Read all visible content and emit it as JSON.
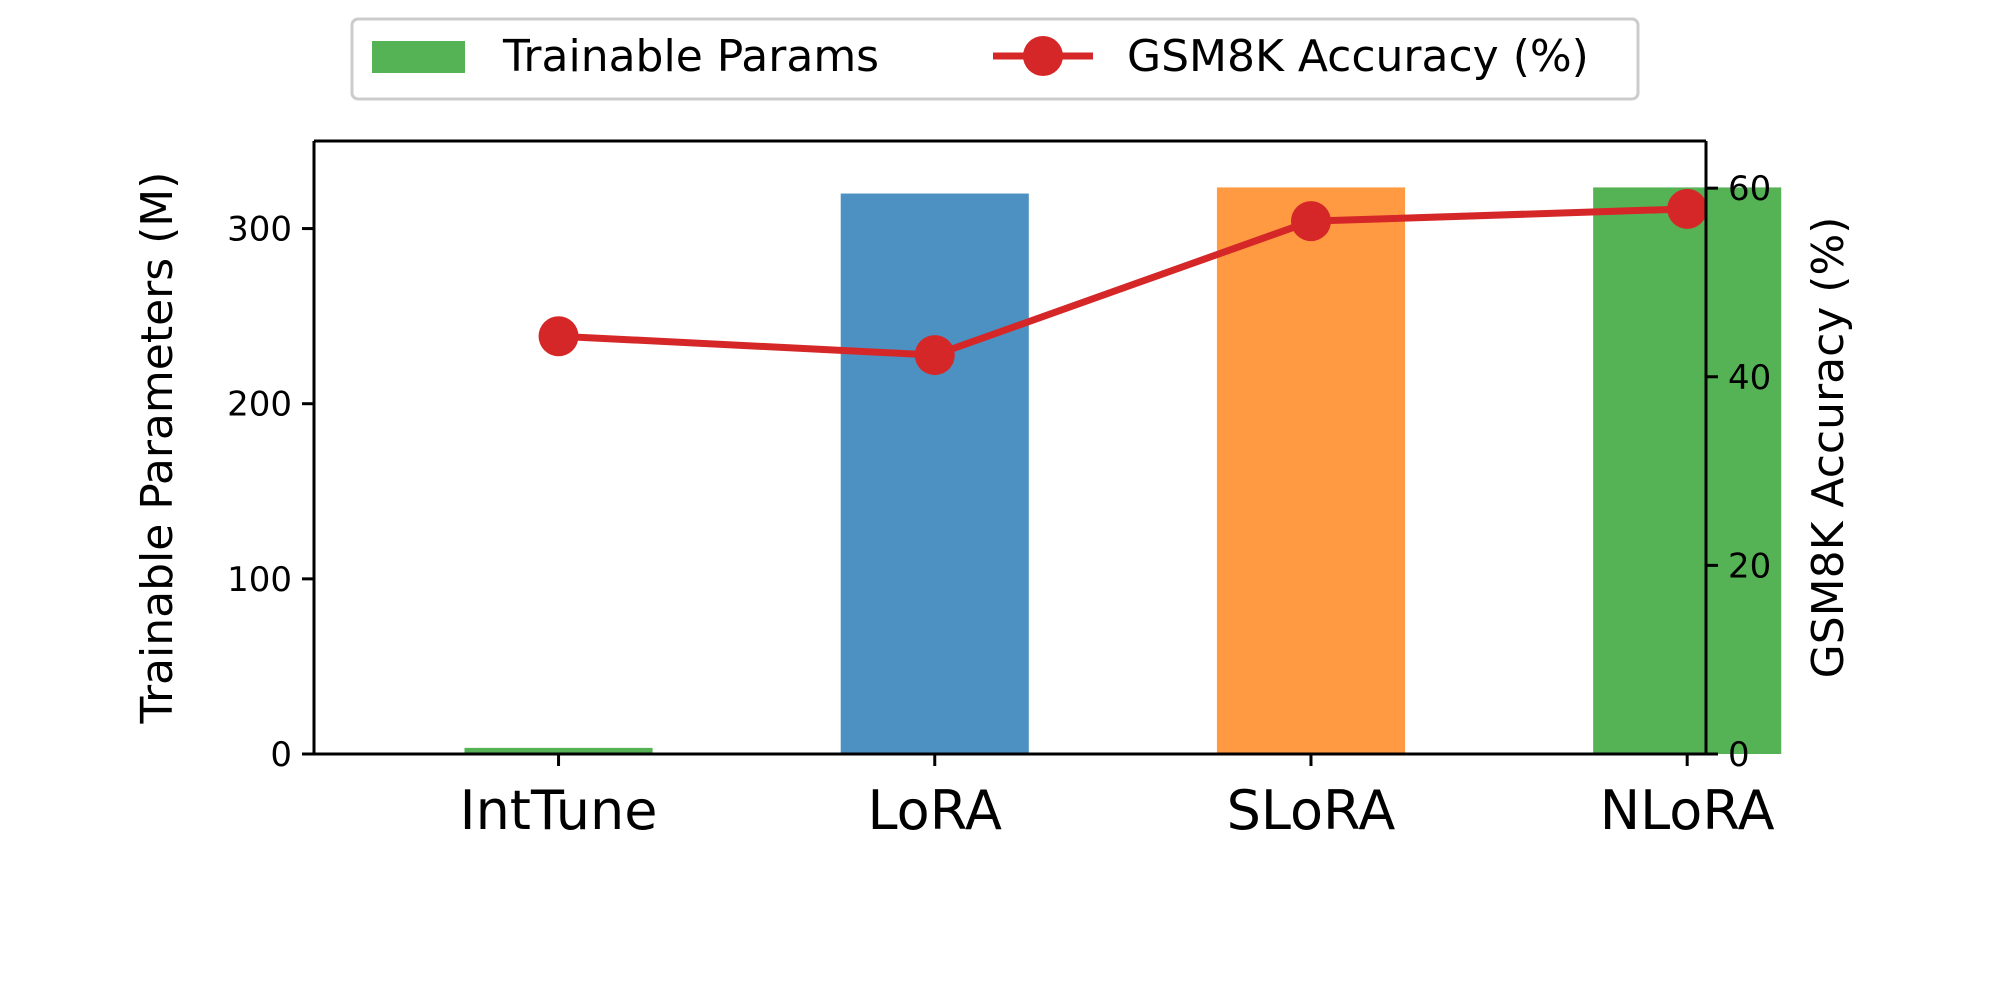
{
  "chart_data": {
    "type": "bar",
    "categories": [
      "IntTune",
      "LoRA",
      "SLoRA",
      "NLoRA"
    ],
    "series": [
      {
        "name": "Trainable Params",
        "kind": "bar",
        "axis": "left",
        "values": [
          3.5,
          320,
          323.5,
          323.5
        ],
        "colors": [
          "#55b355",
          "#4c91c1",
          "#ff9a42",
          "#55b355"
        ]
      },
      {
        "name": "GSM8K Accuracy (%)",
        "kind": "line",
        "axis": "right",
        "values": [
          44.3,
          42.3,
          56.5,
          57.8
        ],
        "color": "#d62728"
      }
    ],
    "ylabel": "Trainable Parameters (M)",
    "y2label": "GSM8K Accuracy (%)",
    "ylim": [
      0,
      350
    ],
    "y2lim": [
      0,
      65
    ],
    "yticks": [
      0,
      100,
      200,
      300
    ],
    "y2ticks": [
      0,
      20,
      40,
      60
    ],
    "grid": false,
    "legend": {
      "placement": "top-center"
    }
  }
}
